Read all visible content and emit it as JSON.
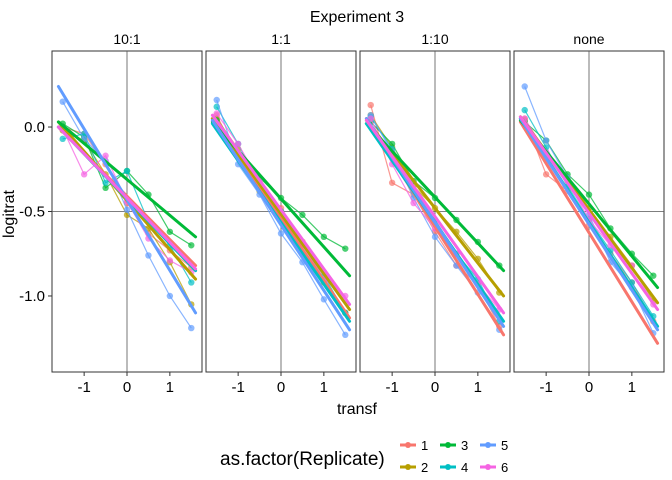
{
  "chart_data": {
    "type": "line",
    "title": "Experiment 3",
    "xlabel": "transf",
    "ylabel": "logitrat",
    "xlim": [
      -1.75,
      1.75
    ],
    "ylim": [
      -1.45,
      0.45
    ],
    "x_ticks": [
      -1,
      0,
      1
    ],
    "x_tick_labels": [
      "-1",
      "0",
      "1"
    ],
    "y_ticks": [
      0.0,
      -0.5,
      -1.0
    ],
    "y_tick_labels": [
      "0.0",
      "-0.5",
      "-1.0"
    ],
    "reference_lines": {
      "x": 0,
      "y": -0.5
    },
    "grid": false,
    "legend": {
      "title": "as.factor(Replicate)",
      "position": "bottom",
      "entries": [
        {
          "label": "1",
          "color": "#F8766D"
        },
        {
          "label": "2",
          "color": "#B79F00"
        },
        {
          "label": "3",
          "color": "#00BA38"
        },
        {
          "label": "4",
          "color": "#00BFC4"
        },
        {
          "label": "5",
          "color": "#619CFF"
        },
        {
          "label": "6",
          "color": "#F564E3"
        }
      ]
    },
    "x": [
      -1.5,
      -1.0,
      -0.5,
      0.0,
      0.5,
      1.0,
      1.5
    ],
    "panels": [
      {
        "name": "10:1",
        "series": [
          {
            "name": "1",
            "color": "#F8766D",
            "values": [
              0.0,
              -0.04,
              -0.22,
              -0.45,
              -0.63,
              -0.73,
              -0.83
            ],
            "fit": [
              0.0,
              -0.82
            ]
          },
          {
            "name": "2",
            "color": "#B79F00",
            "values": [
              -0.02,
              -0.08,
              -0.28,
              -0.52,
              -0.6,
              -0.8,
              -1.05
            ],
            "fit": [
              0.03,
              -0.9
            ]
          },
          {
            "name": "3",
            "color": "#00BA38",
            "values": [
              0.02,
              -0.06,
              -0.36,
              -0.26,
              -0.4,
              -0.62,
              -0.7
            ],
            "fit": [
              0.03,
              -0.65
            ]
          },
          {
            "name": "4",
            "color": "#00BFC4",
            "values": [
              -0.07,
              -0.04,
              -0.33,
              -0.26,
              -0.56,
              -0.7,
              -0.92
            ],
            "fit": [
              0.0,
              -0.85
            ]
          },
          {
            "name": "5",
            "color": "#619CFF",
            "values": [
              0.15,
              -0.07,
              -0.2,
              -0.49,
              -0.76,
              -1.0,
              -1.19
            ],
            "fit": [
              0.24,
              -1.1
            ]
          },
          {
            "name": "6",
            "color": "#F564E3",
            "values": [
              -0.01,
              -0.28,
              -0.17,
              -0.44,
              -0.66,
              -0.79,
              -0.86
            ],
            "fit": [
              0.0,
              -0.84
            ]
          }
        ]
      },
      {
        "name": "1:1",
        "series": [
          {
            "name": "1",
            "color": "#F8766D",
            "values": [
              0.07,
              -0.18,
              -0.33,
              -0.48,
              -0.68,
              -0.9,
              -1.1
            ],
            "fit": [
              0.05,
              -1.13
            ]
          },
          {
            "name": "2",
            "color": "#B79F00",
            "values": [
              0.05,
              -0.13,
              -0.38,
              -0.5,
              -0.68,
              -0.92,
              -1.1
            ],
            "fit": [
              0.05,
              -1.08
            ]
          },
          {
            "name": "3",
            "color": "#00BA38",
            "values": [
              0.04,
              -0.17,
              -0.3,
              -0.42,
              -0.52,
              -0.65,
              -0.72
            ],
            "fit": [
              0.03,
              -0.88
            ]
          },
          {
            "name": "4",
            "color": "#00BFC4",
            "values": [
              0.12,
              -0.1,
              -0.35,
              -0.5,
              -0.7,
              -0.88,
              -1.1
            ],
            "fit": [
              0.02,
              -1.15
            ]
          },
          {
            "name": "5",
            "color": "#619CFF",
            "values": [
              0.16,
              -0.22,
              -0.4,
              -0.63,
              -0.8,
              -1.02,
              -1.23
            ],
            "fit": [
              0.04,
              -1.2
            ]
          },
          {
            "name": "6",
            "color": "#F564E3",
            "values": [
              0.08,
              -0.1,
              -0.32,
              -0.55,
              -0.7,
              -0.9,
              -1.0
            ],
            "fit": [
              0.07,
              -1.05
            ]
          }
        ]
      },
      {
        "name": "1:10",
        "series": [
          {
            "name": "1",
            "color": "#F8766D",
            "values": [
              0.13,
              -0.33,
              -0.4,
              -0.62,
              -0.82,
              -0.93,
              -1.18
            ],
            "fit": [
              0.05,
              -1.23
            ]
          },
          {
            "name": "2",
            "color": "#B79F00",
            "values": [
              0.07,
              -0.12,
              -0.35,
              -0.48,
              -0.62,
              -0.78,
              -0.98
            ],
            "fit": [
              0.04,
              -1.0
            ]
          },
          {
            "name": "3",
            "color": "#00BA38",
            "values": [
              0.03,
              -0.1,
              -0.32,
              -0.42,
              -0.55,
              -0.68,
              -0.82
            ],
            "fit": [
              0.02,
              -0.85
            ]
          },
          {
            "name": "4",
            "color": "#00BFC4",
            "values": [
              0.06,
              -0.13,
              -0.38,
              -0.55,
              -0.75,
              -0.9,
              -1.15
            ],
            "fit": [
              0.02,
              -1.15
            ]
          },
          {
            "name": "5",
            "color": "#619CFF",
            "values": [
              0.07,
              -0.15,
              -0.42,
              -0.65,
              -0.82,
              -0.98,
              -1.2
            ],
            "fit": [
              0.05,
              -1.18
            ]
          },
          {
            "name": "6",
            "color": "#F564E3",
            "values": [
              0.05,
              -0.22,
              -0.45,
              -0.6,
              -0.75,
              -0.93,
              -1.08
            ],
            "fit": [
              0.04,
              -1.1
            ]
          }
        ]
      },
      {
        "name": "none",
        "series": [
          {
            "name": "1",
            "color": "#F8766D",
            "values": [
              0.05,
              -0.28,
              -0.38,
              -0.58,
              -0.75,
              -0.92,
              -1.15
            ],
            "fit": [
              0.03,
              -1.28
            ]
          },
          {
            "name": "2",
            "color": "#B79F00",
            "values": [
              0.04,
              -0.17,
              -0.3,
              -0.48,
              -0.65,
              -0.82,
              -1.03
            ],
            "fit": [
              0.06,
              -1.04
            ]
          },
          {
            "name": "3",
            "color": "#00BA38",
            "values": [
              0.03,
              -0.08,
              -0.28,
              -0.4,
              -0.6,
              -0.75,
              -0.88
            ],
            "fit": [
              0.04,
              -0.95
            ]
          },
          {
            "name": "4",
            "color": "#00BFC4",
            "values": [
              0.1,
              -0.12,
              -0.35,
              -0.55,
              -0.73,
              -0.92,
              -1.12
            ],
            "fit": [
              0.05,
              -1.18
            ]
          },
          {
            "name": "5",
            "color": "#619CFF",
            "values": [
              0.24,
              -0.08,
              -0.3,
              -0.52,
              -0.8,
              -0.95,
              -1.22
            ],
            "fit": [
              0.05,
              -1.2
            ]
          },
          {
            "name": "6",
            "color": "#F564E3",
            "values": [
              0.05,
              -0.15,
              -0.32,
              -0.55,
              -0.7,
              -0.82,
              -1.05
            ],
            "fit": [
              0.06,
              -1.08
            ]
          }
        ]
      }
    ]
  }
}
